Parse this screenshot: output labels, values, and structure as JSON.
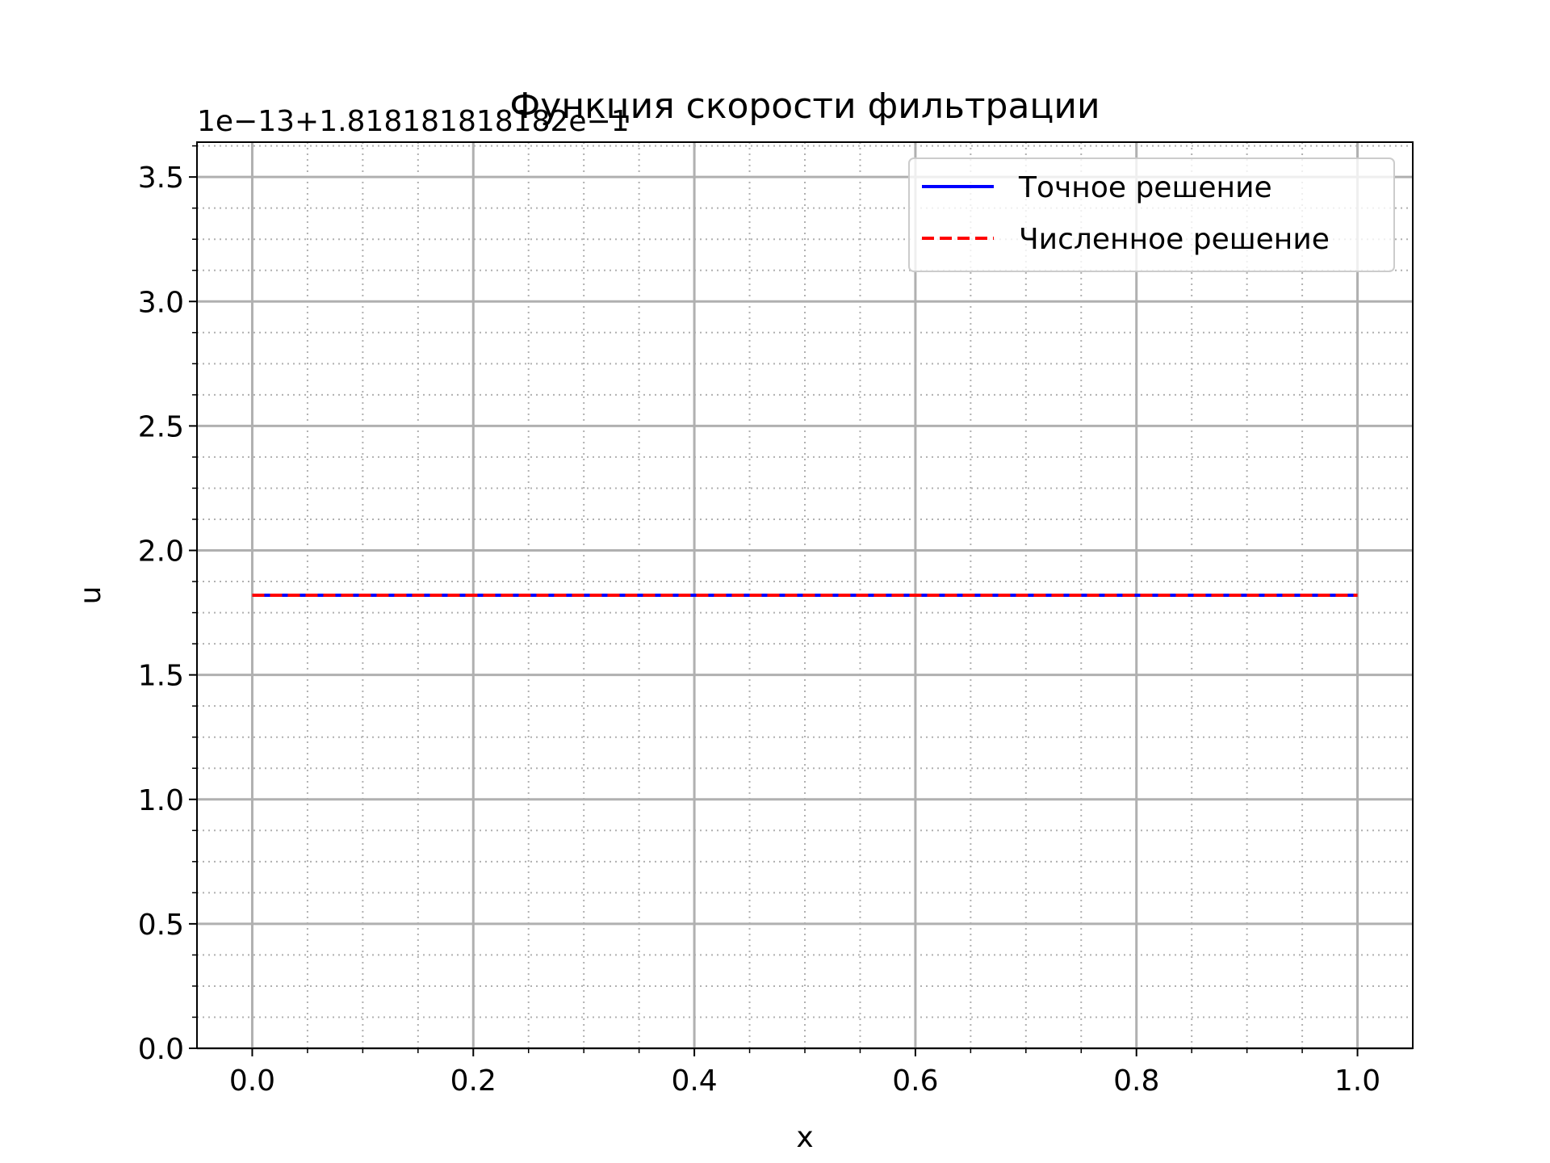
{
  "chart_data": {
    "type": "line",
    "title": "Функция скорости фильтрации",
    "xlabel": "x",
    "ylabel": "u",
    "offset_text": "1e−13+1.818181818182e−1",
    "xlim": [
      -0.05,
      1.05
    ],
    "ylim": [
      0.0,
      3.64
    ],
    "x_ticks": [
      0.0,
      0.2,
      0.4,
      0.6,
      0.8,
      1.0
    ],
    "x_tick_labels": [
      "0.0",
      "0.2",
      "0.4",
      "0.6",
      "0.8",
      "1.0"
    ],
    "y_ticks": [
      0.0,
      0.5,
      1.0,
      1.5,
      2.0,
      2.5,
      3.0,
      3.5
    ],
    "y_tick_labels": [
      "0.0",
      "0.5",
      "1.0",
      "1.5",
      "2.0",
      "2.5",
      "3.0",
      "3.5"
    ],
    "x_minor_step": 0.05,
    "y_minor_step": 0.125,
    "grid": true,
    "legend_position": "upper right",
    "series": [
      {
        "name": "Точное решение",
        "color": "#0000ff",
        "style": "solid",
        "x": [
          0.0,
          0.25,
          0.5,
          0.75,
          1.0
        ],
        "y": [
          1.82,
          1.82,
          1.82,
          1.82,
          1.82
        ]
      },
      {
        "name": "Численное решение",
        "color": "#ff0000",
        "style": "dashed",
        "x": [
          0.0,
          0.25,
          0.5,
          0.75,
          1.0
        ],
        "y": [
          1.82,
          1.82,
          1.82,
          1.82,
          1.82
        ]
      }
    ]
  }
}
